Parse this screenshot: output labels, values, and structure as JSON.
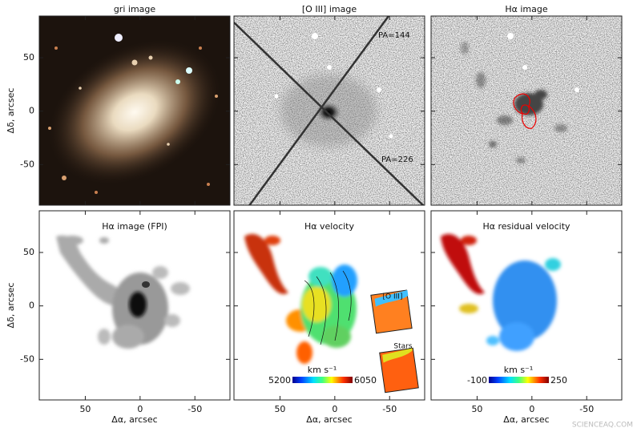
{
  "figure": {
    "axes": {
      "xlim": [
        92,
        -82
      ],
      "ylim": [
        -88,
        89
      ],
      "xticks": [
        50,
        0,
        -50
      ],
      "yticks": [
        50,
        0,
        -50
      ],
      "xlabel": "Δα, arcsec",
      "ylabel": "Δδ, arcsec"
    },
    "panels": [
      {
        "title": "gri image"
      },
      {
        "title": "[O III] image",
        "annotations": [
          "PA=144",
          "PA=226"
        ]
      },
      {
        "title": "Hα image"
      },
      {
        "title": "Hα image (FPI)"
      },
      {
        "title": "Hα velocity",
        "insets": [
          "[O III]",
          "Stars"
        ],
        "colorbar": {
          "label": "km s⁻¹",
          "range": [
            5200,
            6050
          ]
        }
      },
      {
        "title": "Hα residual velocity",
        "colorbar": {
          "label": "km s⁻¹",
          "range": [
            -100,
            250
          ]
        }
      }
    ],
    "watermark": "SCIENCEAQ.COM"
  }
}
